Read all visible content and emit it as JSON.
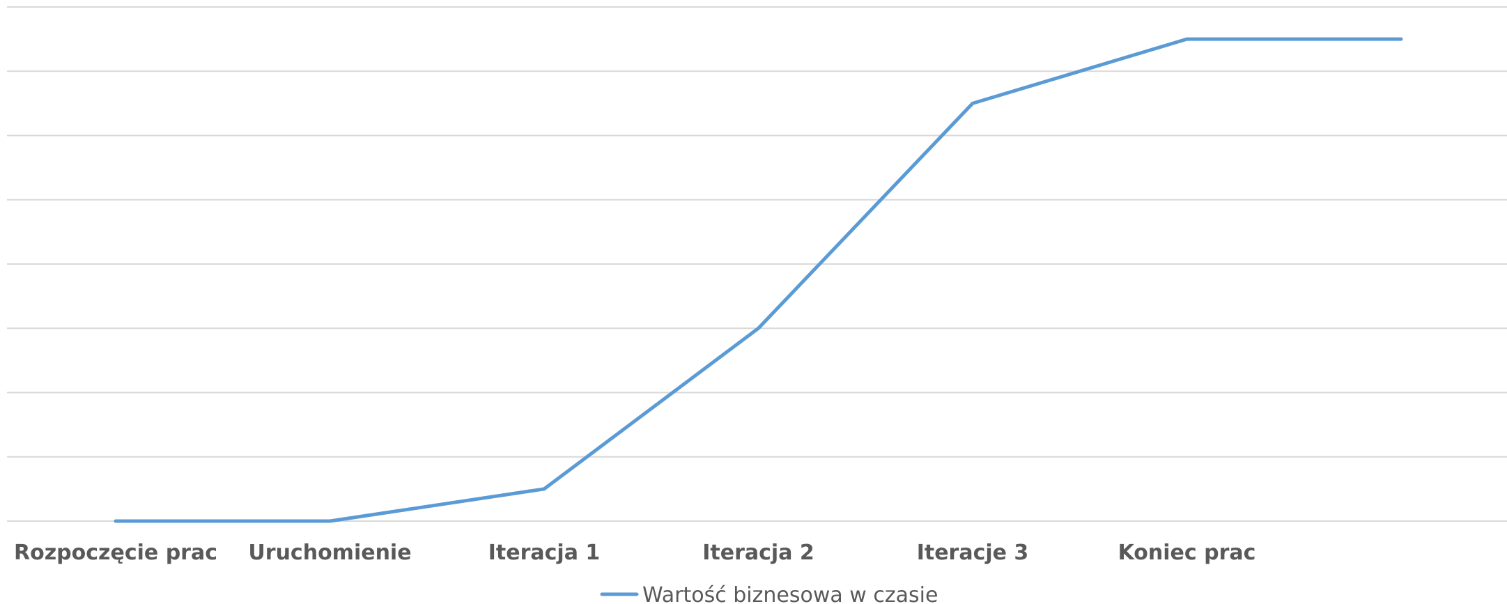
{
  "chart_data": {
    "type": "line",
    "title": "",
    "xlabel": "",
    "ylabel": "",
    "categories": [
      "Rozpoczęcie prac",
      "Uruchomienie",
      "Iteracja 1",
      "Iteracja 2",
      "Iteracje 3",
      "Koniec prac",
      ""
    ],
    "series": [
      {
        "name": "Wartość biznesowa w czasie",
        "values": [
          0,
          0,
          1,
          6,
          13,
          15,
          15
        ]
      }
    ],
    "ylim": [
      0,
      16
    ],
    "y_gridline_step": 2,
    "y_axis_labels_shown": false,
    "grid": true,
    "legend_position": "bottom-center",
    "colors": {
      "series": "#5b9bd5",
      "grid": "#d9d9d9",
      "text": "#595959"
    }
  }
}
